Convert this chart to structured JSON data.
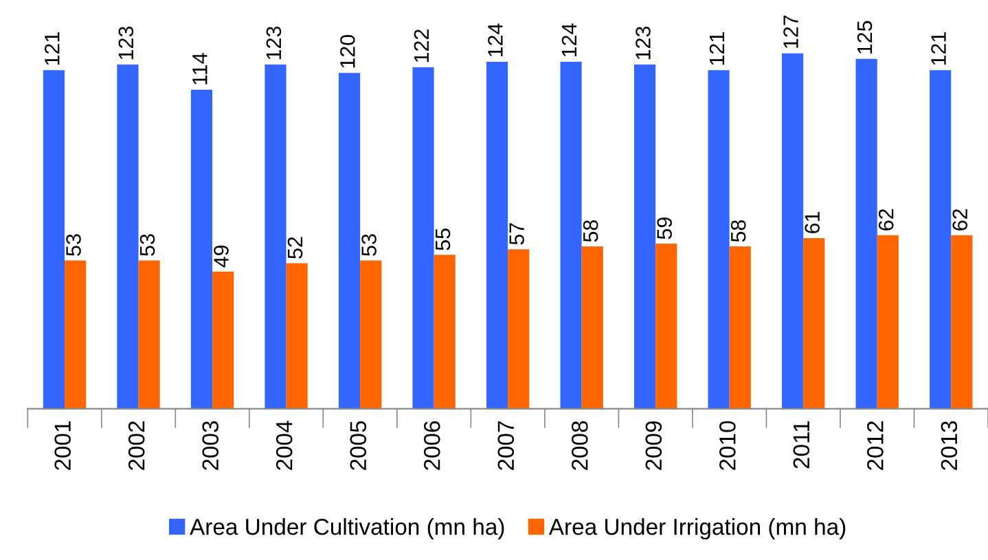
{
  "chart_data": {
    "type": "bar",
    "categories": [
      "2001",
      "2002",
      "2003",
      "2004",
      "2005",
      "2006",
      "2007",
      "2008",
      "2009",
      "2010",
      "2011",
      "2012",
      "2013"
    ],
    "series": [
      {
        "name": "Area Under Cultivation (mn ha)",
        "color": "#3366ff",
        "values": [
          121,
          123,
          114,
          123,
          120,
          122,
          124,
          124,
          123,
          121,
          127,
          125,
          121
        ]
      },
      {
        "name": "Area Under Irrigation (mn ha)",
        "color": "#ff6600",
        "values": [
          53,
          53,
          49,
          52,
          53,
          55,
          57,
          58,
          59,
          58,
          61,
          62,
          62
        ]
      }
    ],
    "data_labels": true,
    "tick_labels": "x",
    "grid": false,
    "legend": "bottom"
  }
}
